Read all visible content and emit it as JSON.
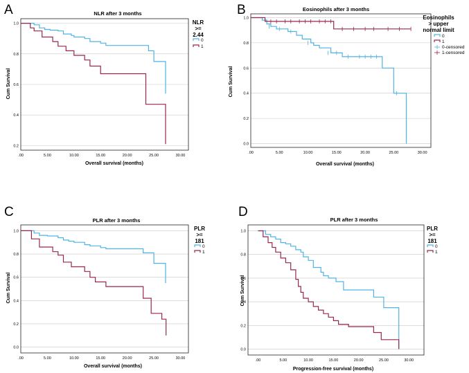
{
  "colors": {
    "group0": "#4db3e6",
    "group1": "#99264d"
  },
  "chart_data": [
    {
      "type": "line",
      "panel": "A",
      "title": "NLR after 3 months",
      "xlabel": "Overall survival (months)",
      "ylabel": "Cum Survival",
      "xlim": [
        0,
        31.5
      ],
      "ylim": [
        0.17,
        1.03
      ],
      "xticks": [
        ".00",
        "5.00",
        "10.00",
        "15.00",
        "20.00",
        "25.00",
        "30.00"
      ],
      "xtick_values": [
        0,
        5,
        10,
        15,
        20,
        25,
        30
      ],
      "yticks": [
        "0.2",
        "0.4",
        "0.6",
        "0.8",
        "1.0"
      ],
      "ytick_values": [
        0.2,
        0.4,
        0.6,
        0.8,
        1.0
      ],
      "legend_title_lines": [
        "NLR",
        ">=",
        "2.44"
      ],
      "legend": [
        "0",
        "1"
      ],
      "series": [
        {
          "name": "0",
          "color": "#4db3e6",
          "x": [
            0,
            2.5,
            3.5,
            4.5,
            5.5,
            7,
            8,
            9.5,
            10,
            12,
            13,
            15,
            16,
            24,
            25,
            26.5,
            27.2
          ],
          "y": [
            1.0,
            0.99,
            0.97,
            0.96,
            0.955,
            0.95,
            0.93,
            0.92,
            0.91,
            0.9,
            0.88,
            0.87,
            0.855,
            0.82,
            0.75,
            0.75,
            0.54
          ]
        },
        {
          "name": "1",
          "color": "#99264d",
          "x": [
            0,
            1.8,
            2.5,
            4,
            6,
            7,
            8.5,
            10,
            12,
            13,
            15,
            22,
            23.5,
            27.2
          ],
          "y": [
            1.0,
            0.97,
            0.95,
            0.91,
            0.88,
            0.85,
            0.82,
            0.79,
            0.76,
            0.72,
            0.67,
            0.67,
            0.47,
            0.21
          ]
        }
      ]
    },
    {
      "type": "line",
      "panel": "B",
      "title": "Eosinophils after 3 months",
      "xlabel": "Overall survival (months)",
      "ylabel": "Cum Survival",
      "xlim": [
        0,
        31.5
      ],
      "ylim": [
        -0.03,
        1.03
      ],
      "xticks": [
        ".00",
        "5.00",
        "10.00",
        "15.00",
        "20.00",
        "25.00",
        "30.00"
      ],
      "xtick_values": [
        0,
        5,
        10,
        15,
        20,
        25,
        30
      ],
      "yticks": [
        "0.0",
        "0.2",
        "0.4",
        "0.6",
        "0.8",
        "1.0"
      ],
      "ytick_values": [
        0,
        0.2,
        0.4,
        0.6,
        0.8,
        1.0
      ],
      "legend_title_lines": [
        "Eosinophils",
        "> upper",
        "normal limit"
      ],
      "legend": [
        "0",
        "1",
        "0-censored",
        "1-censored"
      ],
      "series": [
        {
          "name": "0",
          "color": "#4db3e6",
          "x": [
            0,
            2,
            2.8,
            3.5,
            4.5,
            6.5,
            8,
            9,
            10.5,
            11,
            12,
            14,
            16,
            23,
            25,
            27.2
          ],
          "y": [
            1.0,
            0.98,
            0.95,
            0.93,
            0.91,
            0.89,
            0.86,
            0.83,
            0.8,
            0.78,
            0.76,
            0.72,
            0.69,
            0.6,
            0.4,
            0.0
          ]
        },
        {
          "name": "1",
          "color": "#99264d",
          "x": [
            0,
            2.5,
            14.5,
            28
          ],
          "y": [
            1.0,
            0.97,
            0.91,
            0.91
          ]
        }
      ],
      "censored": [
        {
          "series": "1",
          "x": [
            3.5,
            4.5,
            6,
            7,
            8.5,
            9.5,
            10.5,
            12,
            13,
            14,
            16,
            18,
            20,
            21.5,
            24,
            26,
            28
          ],
          "y": [
            0.97,
            0.97,
            0.97,
            0.97,
            0.97,
            0.97,
            0.97,
            0.97,
            0.97,
            0.97,
            0.91,
            0.91,
            0.91,
            0.91,
            0.91,
            0.91,
            0.91
          ]
        },
        {
          "series": "0",
          "x": [
            3.2,
            5,
            7,
            10,
            13.5,
            15,
            17,
            19,
            20,
            21,
            22,
            25.5
          ],
          "y": [
            0.93,
            0.91,
            0.89,
            0.8,
            0.72,
            0.72,
            0.69,
            0.69,
            0.69,
            0.69,
            0.69,
            0.4
          ]
        }
      ]
    },
    {
      "type": "line",
      "panel": "C",
      "title": "PLR after 3 months",
      "xlabel": "Overall survival (months)",
      "ylabel": "Cum Survival",
      "xlim": [
        0,
        31.5
      ],
      "ylim": [
        -0.05,
        1.05
      ],
      "xticks": [
        ".00",
        "5.00",
        "10.00",
        "15.00",
        "20.00",
        "25.00",
        "30.00"
      ],
      "xtick_values": [
        0,
        5,
        10,
        15,
        20,
        25,
        30
      ],
      "yticks": [
        "0.0",
        "0.2",
        "0.4",
        "0.6",
        "0.8",
        "1.0"
      ],
      "ytick_values": [
        0,
        0.2,
        0.4,
        0.6,
        0.8,
        1.0
      ],
      "legend_title_lines": [
        "PLR",
        ">=",
        "181"
      ],
      "legend": [
        "0",
        "1"
      ],
      "series": [
        {
          "name": "0",
          "color": "#4db3e6",
          "x": [
            0,
            2.5,
            3.5,
            5,
            7,
            8,
            9,
            10,
            12,
            13,
            15,
            16,
            23,
            25,
            27.2
          ],
          "y": [
            1.0,
            0.98,
            0.96,
            0.955,
            0.94,
            0.92,
            0.91,
            0.9,
            0.88,
            0.87,
            0.855,
            0.845,
            0.81,
            0.72,
            0.55
          ]
        },
        {
          "name": "1",
          "color": "#99264d",
          "x": [
            0,
            2,
            3.5,
            6,
            7,
            8,
            9.5,
            12,
            13,
            14,
            16,
            23,
            24.5,
            26.5,
            27.3
          ],
          "y": [
            1.0,
            0.93,
            0.86,
            0.82,
            0.79,
            0.73,
            0.69,
            0.65,
            0.6,
            0.56,
            0.52,
            0.42,
            0.29,
            0.24,
            0.1
          ]
        }
      ]
    },
    {
      "type": "line",
      "panel": "D",
      "title": "PLR after 3 months",
      "xlabel": "Progression-free survival (months)",
      "ylabel": "Cum Survival",
      "xlim": [
        -2,
        33
      ],
      "ylim": [
        -0.05,
        1.05
      ],
      "xticks": [
        ".00",
        "5.00",
        "10.00",
        "15.00",
        "20.00",
        "25.00",
        "30.00"
      ],
      "xtick_values": [
        0,
        5,
        10,
        15,
        20,
        25,
        30
      ],
      "yticks": [
        "0.0",
        "0.2",
        "0.4",
        "0.6",
        "0.8",
        "1.0"
      ],
      "ytick_values": [
        0,
        0.2,
        0.4,
        0.6,
        0.8,
        1.0
      ],
      "legend_title_lines": [
        "PLR",
        ">=",
        "181"
      ],
      "legend": [
        "0",
        "1"
      ],
      "series": [
        {
          "name": "0",
          "color": "#4db3e6",
          "x": [
            0,
            1.5,
            2.5,
            3.5,
            4.5,
            5.5,
            6.5,
            7.5,
            8.5,
            9,
            10,
            11,
            12.5,
            13,
            14,
            15.5,
            17,
            23,
            25,
            28
          ],
          "y": [
            1.0,
            0.97,
            0.95,
            0.93,
            0.9,
            0.89,
            0.87,
            0.84,
            0.82,
            0.78,
            0.75,
            0.69,
            0.65,
            0.62,
            0.6,
            0.57,
            0.5,
            0.44,
            0.35,
            0.0
          ]
        },
        {
          "name": "1",
          "color": "#99264d",
          "x": [
            0,
            1,
            2,
            2.8,
            3.5,
            4.5,
            5.5,
            6.5,
            7.5,
            8,
            8.5,
            9,
            10,
            11,
            12,
            13,
            14,
            15,
            16,
            18,
            23,
            24.5,
            28
          ],
          "y": [
            1.0,
            0.95,
            0.9,
            0.86,
            0.82,
            0.77,
            0.73,
            0.67,
            0.59,
            0.53,
            0.48,
            0.43,
            0.4,
            0.36,
            0.33,
            0.3,
            0.27,
            0.24,
            0.21,
            0.19,
            0.14,
            0.08,
            0.0
          ]
        }
      ]
    }
  ]
}
